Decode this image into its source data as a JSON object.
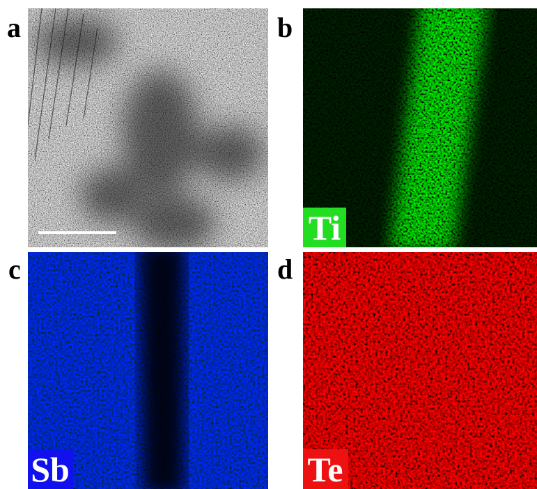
{
  "panels": [
    {
      "label": "a"
    },
    {
      "label": "b",
      "element": "Ti"
    },
    {
      "label": "c",
      "element": "Sb"
    },
    {
      "label": "d",
      "element": "Te"
    }
  ]
}
